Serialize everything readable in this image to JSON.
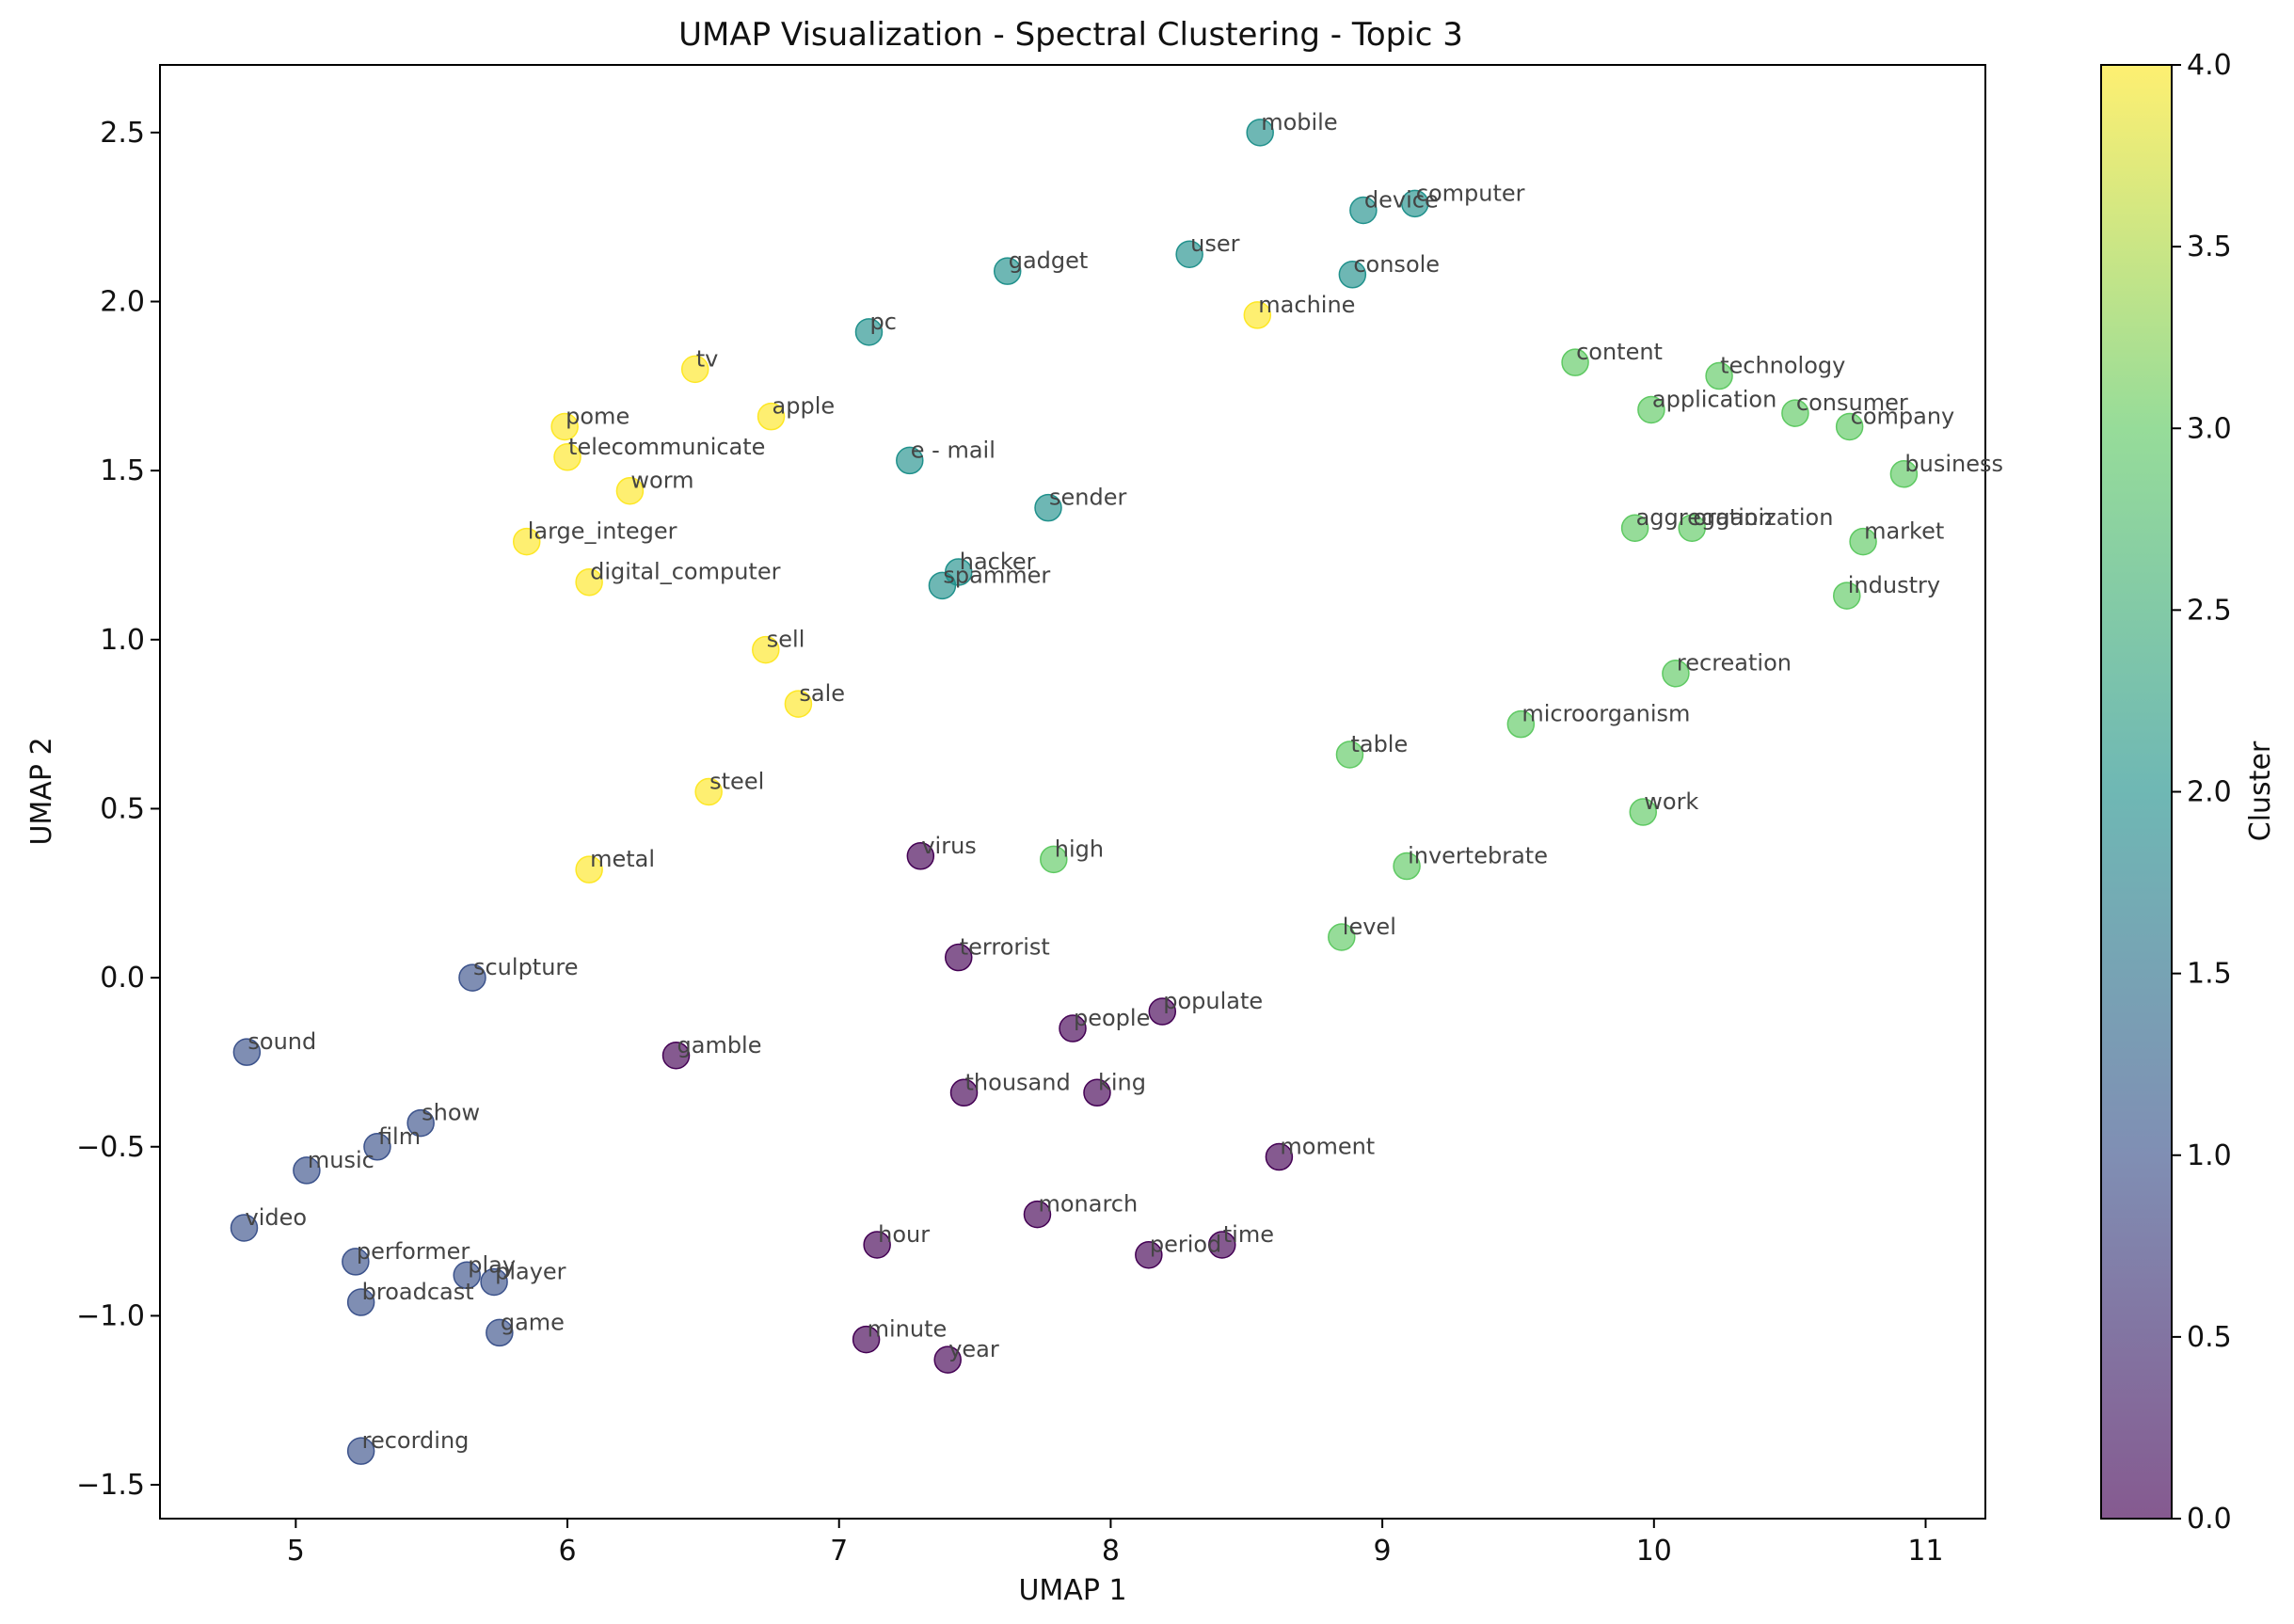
{
  "chart_data": {
    "type": "scatter",
    "title": "UMAP Visualization - Spectral Clustering - Topic 3",
    "xlabel": "UMAP 1",
    "ylabel": "UMAP 2",
    "xlim": [
      4.5,
      11.22
    ],
    "ylim": [
      -1.6,
      2.7
    ],
    "xticks": [
      5,
      6,
      7,
      8,
      9,
      10,
      11
    ],
    "yticks": [
      -1.5,
      -1.0,
      -0.5,
      0.0,
      0.5,
      1.0,
      1.5,
      2.0,
      2.5
    ],
    "colorbar": {
      "label": "Cluster",
      "min": 0.0,
      "max": 4.0,
      "ticks": [
        0.0,
        0.5,
        1.0,
        1.5,
        2.0,
        2.5,
        3.0,
        3.5,
        4.0
      ],
      "colors": [
        "#440154",
        "#3b528b",
        "#21918c",
        "#5ec962",
        "#fde725"
      ],
      "alpha": 0.65
    },
    "points": [
      {
        "label": "mobile",
        "x": 8.55,
        "y": 2.5,
        "cluster": 2
      },
      {
        "label": "computer",
        "x": 9.12,
        "y": 2.29,
        "cluster": 2
      },
      {
        "label": "device",
        "x": 8.93,
        "y": 2.27,
        "cluster": 2
      },
      {
        "label": "user",
        "x": 8.29,
        "y": 2.14,
        "cluster": 2
      },
      {
        "label": "console",
        "x": 8.89,
        "y": 2.08,
        "cluster": 2
      },
      {
        "label": "gadget",
        "x": 7.62,
        "y": 2.09,
        "cluster": 2
      },
      {
        "label": "pc",
        "x": 7.11,
        "y": 1.91,
        "cluster": 2
      },
      {
        "label": "e - mail",
        "x": 7.26,
        "y": 1.53,
        "cluster": 2
      },
      {
        "label": "sender",
        "x": 7.77,
        "y": 1.39,
        "cluster": 2
      },
      {
        "label": "hacker",
        "x": 7.44,
        "y": 1.2,
        "cluster": 2
      },
      {
        "label": "spammer",
        "x": 7.38,
        "y": 1.16,
        "cluster": 2
      },
      {
        "label": "machine",
        "x": 8.54,
        "y": 1.96,
        "cluster": 4
      },
      {
        "label": "tv",
        "x": 6.47,
        "y": 1.8,
        "cluster": 4
      },
      {
        "label": "apple",
        "x": 6.75,
        "y": 1.66,
        "cluster": 4
      },
      {
        "label": "pome",
        "x": 5.99,
        "y": 1.63,
        "cluster": 4
      },
      {
        "label": "telecommunicate",
        "x": 6.0,
        "y": 1.54,
        "cluster": 4
      },
      {
        "label": "worm",
        "x": 6.23,
        "y": 1.44,
        "cluster": 4
      },
      {
        "label": "large_integer",
        "x": 5.85,
        "y": 1.29,
        "cluster": 4
      },
      {
        "label": "digital_computer",
        "x": 6.08,
        "y": 1.17,
        "cluster": 4
      },
      {
        "label": "sell",
        "x": 6.73,
        "y": 0.97,
        "cluster": 4
      },
      {
        "label": "sale",
        "x": 6.85,
        "y": 0.81,
        "cluster": 4
      },
      {
        "label": "steel",
        "x": 6.52,
        "y": 0.55,
        "cluster": 4
      },
      {
        "label": "metal",
        "x": 6.08,
        "y": 0.32,
        "cluster": 4
      },
      {
        "label": "content",
        "x": 9.71,
        "y": 1.82,
        "cluster": 3
      },
      {
        "label": "technology",
        "x": 10.24,
        "y": 1.78,
        "cluster": 3
      },
      {
        "label": "application",
        "x": 9.99,
        "y": 1.68,
        "cluster": 3
      },
      {
        "label": "consumer",
        "x": 10.52,
        "y": 1.67,
        "cluster": 3
      },
      {
        "label": "company",
        "x": 10.72,
        "y": 1.63,
        "cluster": 3
      },
      {
        "label": "business",
        "x": 10.92,
        "y": 1.49,
        "cluster": 3
      },
      {
        "label": "aggregation",
        "x": 9.93,
        "y": 1.33,
        "cluster": 3
      },
      {
        "label": "organization",
        "x": 10.14,
        "y": 1.33,
        "cluster": 3
      },
      {
        "label": "market",
        "x": 10.77,
        "y": 1.29,
        "cluster": 3
      },
      {
        "label": "industry",
        "x": 10.71,
        "y": 1.13,
        "cluster": 3
      },
      {
        "label": "recreation",
        "x": 10.08,
        "y": 0.9,
        "cluster": 3
      },
      {
        "label": "microorganism",
        "x": 9.51,
        "y": 0.75,
        "cluster": 3
      },
      {
        "label": "table",
        "x": 8.88,
        "y": 0.66,
        "cluster": 3
      },
      {
        "label": "work",
        "x": 9.96,
        "y": 0.49,
        "cluster": 3
      },
      {
        "label": "invertebrate",
        "x": 9.09,
        "y": 0.33,
        "cluster": 3
      },
      {
        "label": "high",
        "x": 7.79,
        "y": 0.35,
        "cluster": 3
      },
      {
        "label": "level",
        "x": 8.85,
        "y": 0.12,
        "cluster": 3
      },
      {
        "label": "virus",
        "x": 7.3,
        "y": 0.36,
        "cluster": 0
      },
      {
        "label": "terrorist",
        "x": 7.44,
        "y": 0.06,
        "cluster": 0
      },
      {
        "label": "populate",
        "x": 8.19,
        "y": -0.1,
        "cluster": 0
      },
      {
        "label": "people",
        "x": 7.86,
        "y": -0.15,
        "cluster": 0
      },
      {
        "label": "gamble",
        "x": 6.4,
        "y": -0.23,
        "cluster": 0
      },
      {
        "label": "thousand",
        "x": 7.46,
        "y": -0.34,
        "cluster": 0
      },
      {
        "label": "king",
        "x": 7.95,
        "y": -0.34,
        "cluster": 0
      },
      {
        "label": "moment",
        "x": 8.62,
        "y": -0.53,
        "cluster": 0
      },
      {
        "label": "monarch",
        "x": 7.73,
        "y": -0.7,
        "cluster": 0
      },
      {
        "label": "hour",
        "x": 7.14,
        "y": -0.79,
        "cluster": 0
      },
      {
        "label": "time",
        "x": 8.41,
        "y": -0.79,
        "cluster": 0
      },
      {
        "label": "period",
        "x": 8.14,
        "y": -0.82,
        "cluster": 0
      },
      {
        "label": "minute",
        "x": 7.1,
        "y": -1.07,
        "cluster": 0
      },
      {
        "label": "year",
        "x": 7.4,
        "y": -1.13,
        "cluster": 0
      },
      {
        "label": "sculpture",
        "x": 5.65,
        "y": 0.0,
        "cluster": 1
      },
      {
        "label": "sound",
        "x": 4.82,
        "y": -0.22,
        "cluster": 1
      },
      {
        "label": "show",
        "x": 5.46,
        "y": -0.43,
        "cluster": 1
      },
      {
        "label": "film",
        "x": 5.3,
        "y": -0.5,
        "cluster": 1
      },
      {
        "label": "music",
        "x": 5.04,
        "y": -0.57,
        "cluster": 1
      },
      {
        "label": "video",
        "x": 4.81,
        "y": -0.74,
        "cluster": 1
      },
      {
        "label": "performer",
        "x": 5.22,
        "y": -0.84,
        "cluster": 1
      },
      {
        "label": "play",
        "x": 5.63,
        "y": -0.88,
        "cluster": 1
      },
      {
        "label": "player",
        "x": 5.73,
        "y": -0.9,
        "cluster": 1
      },
      {
        "label": "broadcast",
        "x": 5.24,
        "y": -0.96,
        "cluster": 1
      },
      {
        "label": "game",
        "x": 5.75,
        "y": -1.05,
        "cluster": 1
      },
      {
        "label": "recording",
        "x": 5.24,
        "y": -1.4,
        "cluster": 1
      }
    ]
  }
}
